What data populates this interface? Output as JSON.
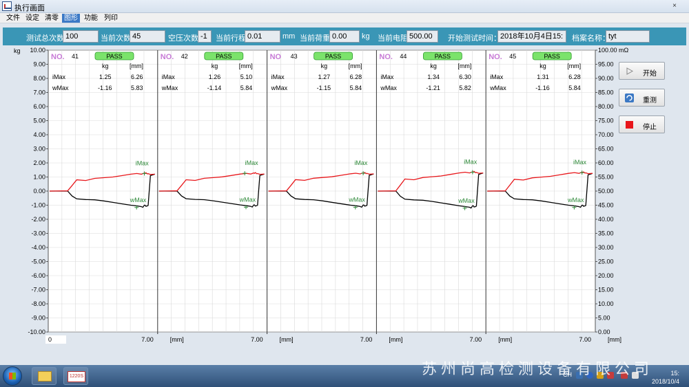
{
  "window": {
    "title": "执行画面",
    "close_glyph": "×"
  },
  "menu": [
    {
      "label": "文件",
      "active": false
    },
    {
      "label": "设定",
      "active": false
    },
    {
      "label": "清零",
      "active": false
    },
    {
      "label": "图形",
      "active": true
    },
    {
      "label": "功能",
      "active": false
    },
    {
      "label": "列印",
      "active": false
    }
  ],
  "info": {
    "total_tests_label": "测试总次数",
    "total_tests": "100",
    "current_count_label": "当前次数",
    "current_count": "45",
    "air_press_label": "空压次数",
    "air_press": "-1",
    "current_stroke_label": "当前行程",
    "current_stroke": "0.01",
    "stroke_unit": "mm",
    "current_load_label": "当前荷重",
    "current_load": "0.00",
    "load_unit": "kg",
    "current_resistance_label": "当前电阻",
    "current_resistance": "500.00",
    "start_time_label": "开始测试时间：",
    "start_time": "2018年10月4日15:",
    "file_name_label": "档案名称：",
    "file_name": "tyt"
  },
  "chart_data": {
    "type": "line",
    "left_axis": {
      "unit": "kg",
      "min": -10,
      "max": 10,
      "step": 1
    },
    "right_axis": {
      "unit": "mΩ",
      "min": 0,
      "max": 100,
      "step": 5
    },
    "x_axis": {
      "unit": "[mm]",
      "max_label": "7.00",
      "min_label": "0"
    },
    "panels": [
      {
        "no_label": "NO.",
        "no": "41",
        "status": "PASS",
        "col_kg": "kg",
        "col_mm": "[mm]",
        "imax_label": "iMax",
        "imax_kg": "1.25",
        "imax_mm": "6.26",
        "wmax_label": "wMax",
        "wmax_kg": "-1.16",
        "wmax_mm": "5.83"
      },
      {
        "no_label": "NO.",
        "no": "42",
        "status": "PASS",
        "col_kg": "kg",
        "col_mm": "[mm]",
        "imax_label": "iMax",
        "imax_kg": "1.26",
        "imax_mm": "5.10",
        "wmax_label": "wMax",
        "wmax_kg": "-1.14",
        "wmax_mm": "5.84"
      },
      {
        "no_label": "NO",
        "no": "43",
        "status": "PASS",
        "col_kg": "kg",
        "col_mm": "[mm]",
        "imax_label": "iMax",
        "imax_kg": "1.27",
        "imax_mm": "6.28",
        "wmax_label": "wMax",
        "wmax_kg": "-1.15",
        "wmax_mm": "5.84"
      },
      {
        "no_label": "NO.",
        "no": "44",
        "status": "PASS",
        "col_kg": "kg",
        "col_mm": "[mm]",
        "imax_label": "iMax",
        "imax_kg": "1.34",
        "imax_mm": "6.30",
        "wmax_label": "wMax",
        "wmax_kg": "-1.21",
        "wmax_mm": "5.82"
      },
      {
        "no_label": "NO.",
        "no": "45",
        "status": "PASS",
        "col_kg": "kg",
        "col_mm": "[mm]",
        "imax_label": "iMax",
        "imax_kg": "1.31",
        "imax_mm": "6.28",
        "wmax_label": "wMax",
        "wmax_kg": "-1.16",
        "wmax_mm": "5.84"
      }
    ],
    "curve_x": [
      0,
      1.2,
      1.5,
      1.8,
      2.4,
      3.0,
      3.6,
      4.2,
      4.8,
      5.4,
      5.8,
      6.1,
      6.2,
      6.3,
      6.35,
      6.4,
      6.5,
      6.55,
      6.7,
      7.0
    ],
    "push_y": [
      0,
      0.02,
      0.4,
      0.8,
      0.75,
      0.9,
      0.95,
      1.0,
      1.1,
      1.2,
      1.25,
      1.2,
      1.24,
      1.28,
      1.25,
      1.3,
      1.22,
      1.24,
      1.18,
      1.2
    ],
    "return_y": [
      0,
      0.0,
      -0.35,
      -0.55,
      -0.6,
      -0.62,
      -0.7,
      -0.8,
      -0.9,
      -1.0,
      -1.05,
      -1.1,
      -1.15,
      -1.0,
      -1.0,
      -1.08,
      -1.05,
      -1.02,
      1.1,
      1.2
    ],
    "imax_marker": "iMax",
    "wmax_marker": "wMax",
    "push_color": "#e8161a",
    "return_color": "#000000",
    "grid": true
  },
  "buttons": {
    "start": "开始",
    "retest": "重测",
    "stop": "停止"
  },
  "taskbar": {
    "app_label": "1220S",
    "watermark": "苏州尚高检测设备有限公司",
    "lang": "CH",
    "time": "15:",
    "date": "2018/10/4"
  }
}
